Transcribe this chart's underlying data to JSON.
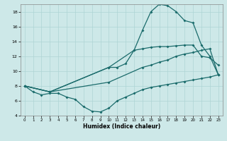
{
  "xlabel": "Humidex (Indice chaleur)",
  "xlim": [
    -0.5,
    23.5
  ],
  "ylim": [
    4,
    19
  ],
  "yticks": [
    4,
    6,
    8,
    10,
    12,
    14,
    16,
    18
  ],
  "xticks": [
    0,
    1,
    2,
    3,
    4,
    5,
    6,
    7,
    8,
    9,
    10,
    11,
    12,
    13,
    14,
    15,
    16,
    17,
    18,
    19,
    20,
    21,
    22,
    23
  ],
  "bg_color": "#cde8e8",
  "line_color": "#1a6b6b",
  "grid_color": "#aed4d4",
  "lines": [
    {
      "x": [
        0,
        1,
        2,
        3,
        4,
        5,
        6,
        7,
        8,
        9,
        10,
        11,
        12,
        13,
        14,
        15,
        16,
        17,
        18,
        19,
        20,
        21,
        22,
        23
      ],
      "y": [
        8,
        7.2,
        6.8,
        7.0,
        7.0,
        6.5,
        6.2,
        5.2,
        4.6,
        4.5,
        5.0,
        6.0,
        6.5,
        7.0,
        7.5,
        7.8,
        8.0,
        8.2,
        8.4,
        8.6,
        8.8,
        9.0,
        9.2,
        9.5
      ]
    },
    {
      "x": [
        0,
        3,
        10,
        14,
        15,
        16,
        17,
        18,
        19,
        20,
        21,
        22,
        23
      ],
      "y": [
        8,
        7.2,
        8.5,
        10.5,
        10.8,
        11.2,
        11.5,
        12.0,
        12.3,
        12.5,
        12.8,
        13.0,
        9.5
      ]
    },
    {
      "x": [
        0,
        3,
        10,
        11,
        12,
        13,
        14,
        15,
        16,
        17,
        18,
        19,
        20,
        21,
        22,
        23
      ],
      "y": [
        8,
        7.2,
        10.5,
        10.5,
        11.0,
        12.8,
        13.0,
        13.2,
        13.3,
        13.3,
        13.4,
        13.5,
        13.5,
        12.0,
        11.8,
        10.8
      ]
    },
    {
      "x": [
        0,
        3,
        10,
        13,
        14,
        15,
        16,
        17,
        18,
        19,
        20,
        21,
        22,
        23
      ],
      "y": [
        8,
        7.2,
        10.5,
        12.8,
        15.5,
        18.0,
        19.0,
        18.8,
        18.0,
        16.8,
        16.5,
        13.5,
        12.0,
        9.5
      ]
    }
  ]
}
